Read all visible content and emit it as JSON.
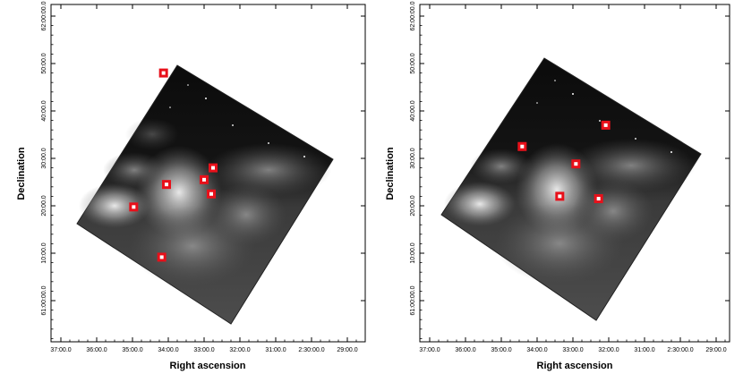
{
  "panels": [
    {
      "id": "left",
      "x_label": "Right ascension",
      "y_label": "Declination",
      "x_ticks": [
        "37:00.0",
        "36:00.0",
        "35:00.0",
        "34:00.0",
        "33:00.0",
        "32:00.0",
        "31:00.0",
        "2:30:00.0",
        "29:00.0"
      ],
      "y_ticks": [
        "62:00:00.0",
        "50:00.0",
        "40:00.0",
        "30:00.0",
        "20:00.0",
        "10:00.0",
        "61:00:00.0"
      ],
      "markers": [
        {
          "ra": "34:08",
          "dec": "48:00"
        },
        {
          "ra": "32:45",
          "dec": "28:00"
        },
        {
          "ra": "33:00",
          "dec": "25:30"
        },
        {
          "ra": "34:03",
          "dec": "24:30"
        },
        {
          "ra": "32:48",
          "dec": "22:30"
        },
        {
          "ra": "34:58",
          "dec": "19:45"
        },
        {
          "ra": "34:11",
          "dec": "09:10"
        }
      ]
    },
    {
      "id": "right",
      "x_label": "Right ascension",
      "y_label": "Declination",
      "x_ticks": [
        "37:00.0",
        "36:00.0",
        "35:00.0",
        "34:00.0",
        "33:00.0",
        "32:00.0",
        "31:00.0",
        "2:30:00.0",
        "29:00.0"
      ],
      "y_ticks": [
        "62:00:00.0",
        "50:00.0",
        "40:00.0",
        "30:00.0",
        "20:00.0",
        "10:00.0",
        "61:00:00.0"
      ],
      "markers": [
        {
          "ra": "32:05",
          "dec": "37:00"
        },
        {
          "ra": "34:25",
          "dec": "32:30"
        },
        {
          "ra": "32:55",
          "dec": "28:50"
        },
        {
          "ra": "33:22",
          "dec": "22:00"
        },
        {
          "ra": "32:17",
          "dec": "21:30"
        }
      ]
    }
  ],
  "colors": {
    "marker": "#e8101a",
    "background": "#ffffff",
    "nebula": "#b8b8b8",
    "sky": "#111111"
  }
}
